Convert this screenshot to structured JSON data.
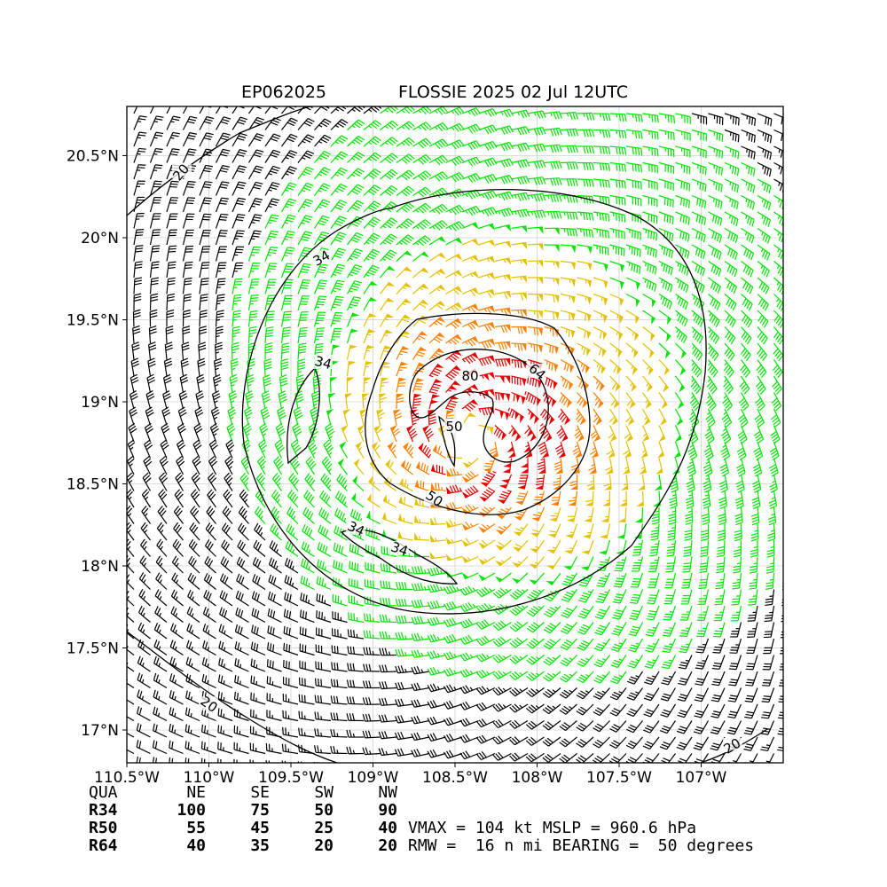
{
  "header": {
    "storm_id": "EP062025",
    "storm_title": "FLOSSIE 2025 02 Jul 12UTC"
  },
  "map": {
    "lon_range": [
      -110.5,
      -106.5
    ],
    "lat_range": [
      16.8,
      20.8
    ],
    "lon_ticks": [
      "110.5°W",
      "110°W",
      "109.5°W",
      "109°W",
      "108.5°W",
      "108°W",
      "107.5°W",
      "107°W"
    ],
    "lon_tick_values": [
      -110.5,
      -110,
      -109.5,
      -109,
      -108.5,
      -108,
      -107.5,
      -107
    ],
    "lat_ticks": [
      "20.5°N",
      "20°N",
      "19.5°N",
      "19°N",
      "18.5°N",
      "18°N",
      "17.5°N",
      "17°N"
    ],
    "lat_tick_values": [
      20.5,
      20,
      19.5,
      19,
      18.5,
      18,
      17.5,
      17
    ],
    "grid": true,
    "center": {
      "lon": -108.4,
      "lat": 18.78
    },
    "barb_colors": {
      "lt34": "#000000",
      "34_50": "#00e600",
      "50_64": "#e6c000",
      "64_80": "#ff7f00",
      "ge80": "#e60000"
    },
    "contour_labels": [
      "20",
      "20",
      "20",
      "34",
      "34",
      "34",
      "34",
      "50",
      "50",
      "64",
      "80"
    ]
  },
  "wind_radii": {
    "header": [
      "QUA",
      "NE",
      "SE",
      "SW",
      "NW"
    ],
    "rows": [
      {
        "label": "R34",
        "values": [
          "100",
          "75",
          "50",
          "90"
        ]
      },
      {
        "label": "R50",
        "values": [
          "55",
          "45",
          "25",
          "40"
        ]
      },
      {
        "label": "R64",
        "values": [
          "40",
          "35",
          "20",
          "20"
        ]
      }
    ]
  },
  "storm_info": {
    "line1": "VMAX = 104 kt MSLP = 960.6 hPa",
    "line2": "RMW =  16 n mi BEARING =  50 degrees"
  }
}
